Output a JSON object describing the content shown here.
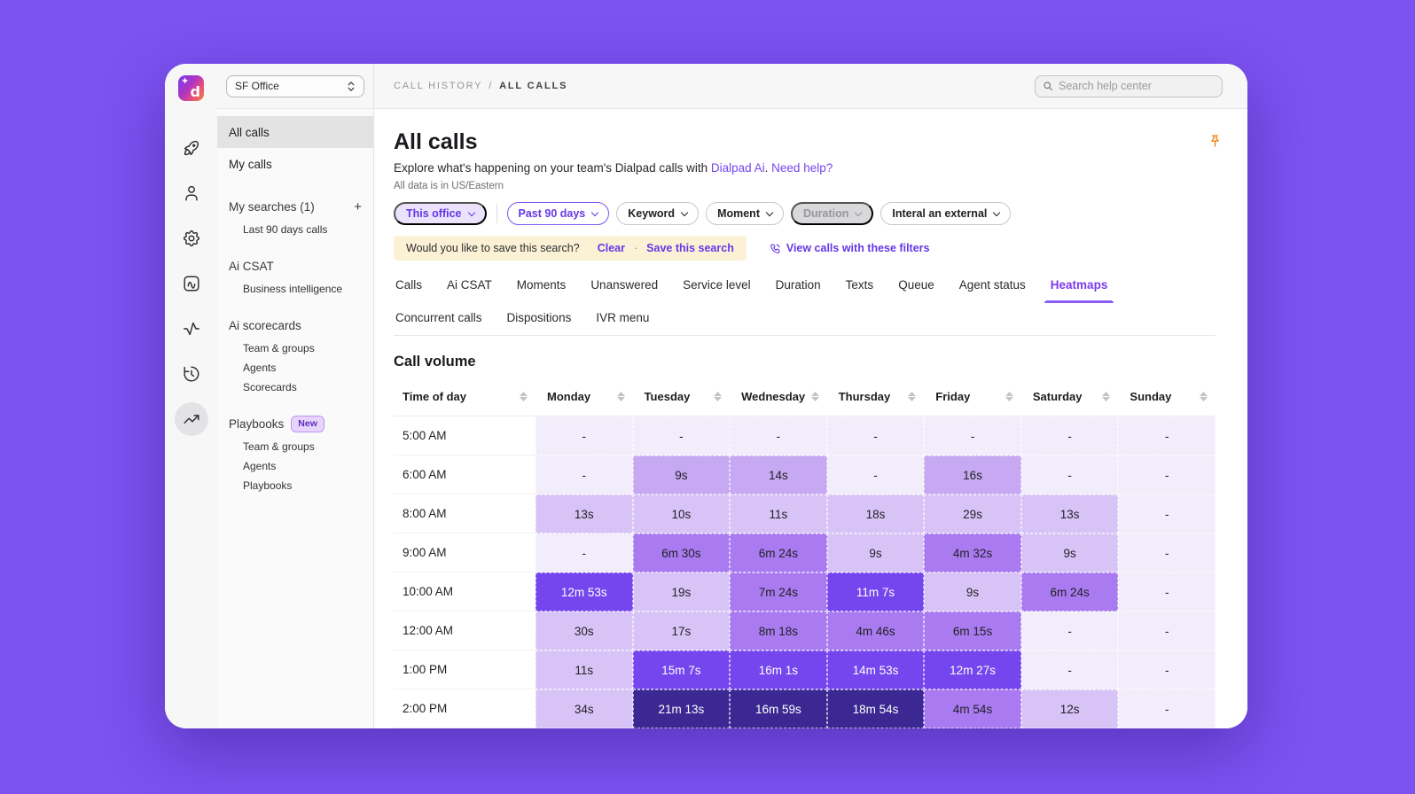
{
  "theme": {
    "background": "#7C52F0",
    "accent": "#7C3AED",
    "heat_colors": {
      "0": "#F2EDFB",
      "1": "#D8C3F7",
      "2": "#C7A8F2",
      "3": "#A97AF0",
      "4": "#7546ED",
      "5": "#3B2892"
    },
    "banner_bg": "#FBF2D6",
    "pin_color": "#F07D0A"
  },
  "logo": {
    "letter": "d",
    "sparkle": "✦"
  },
  "office_selector": {
    "value": "SF Office"
  },
  "rail_icons": [
    {
      "name": "rocket-icon",
      "selected": false
    },
    {
      "name": "user-icon",
      "selected": false
    },
    {
      "name": "settings-gear-icon",
      "selected": false
    },
    {
      "name": "ai-notes-icon",
      "selected": false
    },
    {
      "name": "activity-pulse-icon",
      "selected": false
    },
    {
      "name": "history-icon",
      "selected": false
    },
    {
      "name": "trending-up-icon",
      "selected": true
    }
  ],
  "sidebar": {
    "items": [
      {
        "label": "All calls",
        "type": "item",
        "selected": true
      },
      {
        "label": "My calls",
        "type": "item",
        "selected": false
      },
      {
        "label": "My searches (1)",
        "type": "section",
        "action": "+"
      },
      {
        "label": "Last 90 days calls",
        "type": "subitem"
      },
      {
        "label": "Ai CSAT",
        "type": "section"
      },
      {
        "label": "Business intelligence",
        "type": "subitem"
      },
      {
        "label": "Ai scorecards",
        "type": "section"
      },
      {
        "label": "Team & groups",
        "type": "subitem"
      },
      {
        "label": "Agents",
        "type": "subitem"
      },
      {
        "label": "Scorecards",
        "type": "subitem"
      },
      {
        "label": "Playbooks",
        "type": "section",
        "badge": "New"
      },
      {
        "label": "Team & groups",
        "type": "subitem"
      },
      {
        "label": "Agents",
        "type": "subitem"
      },
      {
        "label": "Playbooks",
        "type": "subitem"
      }
    ]
  },
  "header": {
    "breadcrumb": [
      "CALL HISTORY",
      "ALL CALLS"
    ],
    "breadcrumb_separator": "/",
    "search_placeholder": "Search help center"
  },
  "page": {
    "title": "All calls",
    "subtitle_prefix": "Explore what's happening on your team's Dialpad calls with ",
    "subtitle_link1": "Dialpad Ai",
    "subtitle_sep": ". ",
    "subtitle_link2": "Need help?",
    "timezone_note": "All data is in US/Eastern"
  },
  "filters": {
    "chips": [
      {
        "label": "This office",
        "style": "filled-purple"
      },
      {
        "label": "Past 90 days",
        "style": "outlined-purple"
      },
      {
        "label": "Keyword",
        "style": "default"
      },
      {
        "label": "Moment",
        "style": "default"
      },
      {
        "label": "Duration",
        "style": "disabled"
      },
      {
        "label": "Interal an external",
        "style": "default"
      }
    ],
    "save_prompt": "Would you like to save this search?",
    "clear_label": "Clear",
    "dot": "·",
    "save_label": "Save this search",
    "view_calls_label": "View calls with these filters"
  },
  "tabs": [
    {
      "label": "Calls",
      "active": false
    },
    {
      "label": "Ai CSAT",
      "active": false
    },
    {
      "label": "Moments",
      "active": false
    },
    {
      "label": "Unanswered",
      "active": false
    },
    {
      "label": "Service level",
      "active": false
    },
    {
      "label": "Duration",
      "active": false
    },
    {
      "label": "Texts",
      "active": false
    },
    {
      "label": "Queue",
      "active": false
    },
    {
      "label": "Agent status",
      "active": false
    },
    {
      "label": "Heatmaps",
      "active": true
    },
    {
      "label": "Concurrent calls",
      "active": false
    },
    {
      "label": "Dispositions",
      "active": false
    },
    {
      "label": "IVR menu",
      "active": false
    }
  ],
  "chart_data": {
    "type": "heatmap",
    "title": "Call volume",
    "row_header": "Time of day",
    "x_labels": [
      "Monday",
      "Tuesday",
      "Wednesday",
      "Thursday",
      "Friday",
      "Saturday",
      "Sunday"
    ],
    "y_labels": [
      "5:00 AM",
      "6:00 AM",
      "8:00 AM",
      "9:00 AM",
      "10:00 AM",
      "12:00 AM",
      "1:00 PM",
      "2:00 PM"
    ],
    "values": [
      [
        "-",
        "-",
        "-",
        "-",
        "-",
        "-",
        "-"
      ],
      [
        "-",
        "9s",
        "14s",
        "-",
        "16s",
        "-",
        "-"
      ],
      [
        "13s",
        "10s",
        "11s",
        "18s",
        "29s",
        "13s",
        "-"
      ],
      [
        "-",
        "6m 30s",
        "6m 24s",
        "9s",
        "4m 32s",
        "9s",
        "-"
      ],
      [
        "12m 53s",
        "19s",
        "7m 24s",
        "11m 7s",
        "9s",
        "6m 24s",
        "-"
      ],
      [
        "30s",
        "17s",
        "8m 18s",
        "4m 46s",
        "6m 15s",
        "-",
        "-"
      ],
      [
        "11s",
        "15m 7s",
        "16m 1s",
        "14m 53s",
        "12m 27s",
        "-",
        "-"
      ],
      [
        "34s",
        "21m 13s",
        "16m 59s",
        "18m 54s",
        "4m 54s",
        "12s",
        "-"
      ]
    ],
    "levels": [
      [
        0,
        0,
        0,
        0,
        0,
        0,
        0
      ],
      [
        0,
        2,
        2,
        0,
        2,
        0,
        0
      ],
      [
        1,
        1,
        1,
        1,
        1,
        1,
        0
      ],
      [
        0,
        3,
        3,
        1,
        3,
        1,
        0
      ],
      [
        4,
        1,
        3,
        4,
        1,
        3,
        0
      ],
      [
        1,
        1,
        3,
        3,
        3,
        0,
        0
      ],
      [
        1,
        4,
        4,
        4,
        4,
        0,
        0
      ],
      [
        1,
        5,
        5,
        5,
        3,
        1,
        0
      ]
    ]
  }
}
